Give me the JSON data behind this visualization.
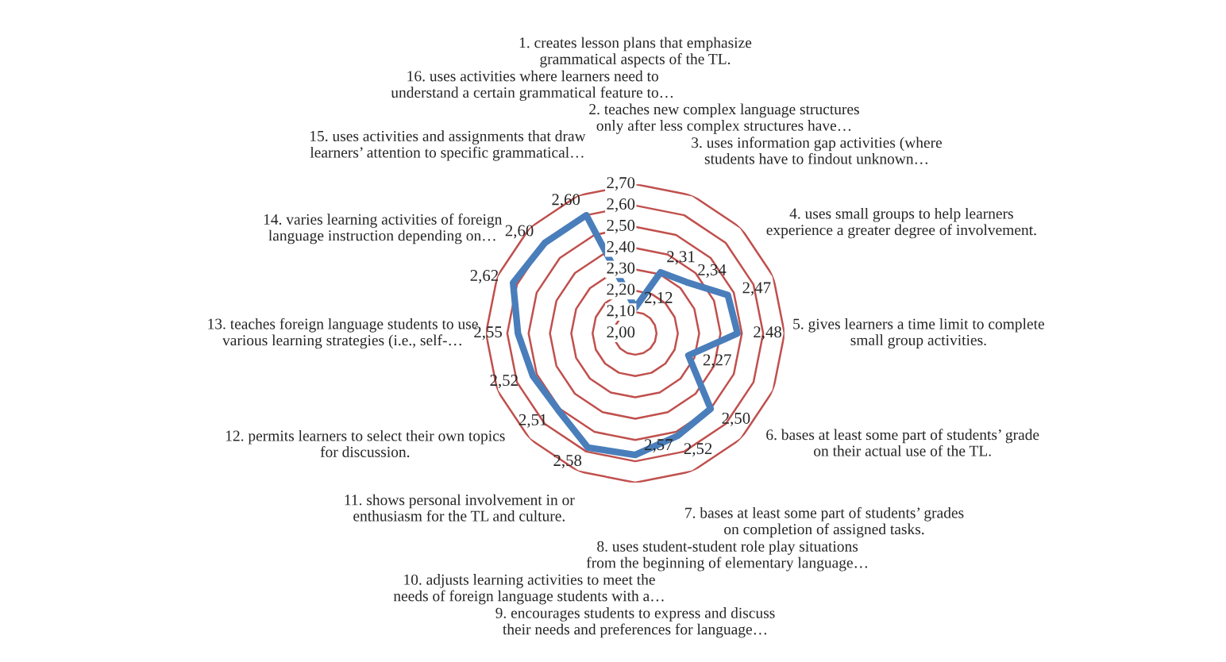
{
  "chart_data": {
    "type": "radar",
    "categories": [
      "1. creates lesson plans that emphasize\ngrammatical aspects of the TL.",
      "2. teaches new complex language structures\nonly after less complex structures have…",
      "3. uses information gap activities (where\nstudents have to findout unknown…",
      "4. uses small groups to help learners\nexperience a greater degree of involvement.",
      "5. gives learners a time limit to complete\nsmall group activities.",
      "6. bases at least some part of students’ grade\non their actual use of the TL.",
      "7. bases at least some part of students’ grades\non completion of assigned tasks.",
      "8. uses student-student role play situations\nfrom the beginning of elementary language…",
      "9. encourages students to express and discuss\ntheir needs and preferences for language…",
      "10. adjusts learning activities to meet the\nneeds of foreign language students with a…",
      "11. shows personal involvement in or\nenthusiasm for the TL and culture.",
      "12. permits learners to select their own topics\nfor discussion.",
      "13. teaches foreign language students to use\nvarious learning strategies (i.e., self-…",
      "14. varies learning activities of foreign\nlanguage instruction depending on…",
      "15. uses activities and assignments that draw\nlearners’ attention to specific grammatical…",
      "16. uses activities where learners need to\nunderstand a certain grammatical feature to…"
    ],
    "series": [
      {
        "color": "#4a7ebb",
        "values": [
          2.12,
          2.31,
          2.34,
          2.47,
          2.48,
          2.27,
          2.5,
          2.52,
          2.57,
          2.58,
          2.51,
          2.52,
          2.55,
          2.62,
          2.6,
          2.6
        ],
        "value_labels": [
          "2,12",
          "2,31",
          "2,34",
          "2,47",
          "2,48",
          "2,27",
          "2,50",
          "2,52",
          "2,57",
          "2,58",
          "2,51",
          "2,52",
          "2,55",
          "2,62",
          "2,60",
          "2,60"
        ]
      }
    ],
    "ylim": [
      2.0,
      2.7
    ],
    "yticks": [
      {
        "value": 2.0,
        "label": "2,00"
      },
      {
        "value": 2.1,
        "label": "2,10"
      },
      {
        "value": 2.2,
        "label": "2,20"
      },
      {
        "value": 2.3,
        "label": "2,30"
      },
      {
        "value": 2.4,
        "label": "2,40"
      },
      {
        "value": 2.5,
        "label": "2,50"
      },
      {
        "value": 2.6,
        "label": "2,60"
      },
      {
        "value": 2.7,
        "label": "2,70"
      }
    ],
    "grid": true,
    "marker": "none",
    "line_style": "solid"
  }
}
